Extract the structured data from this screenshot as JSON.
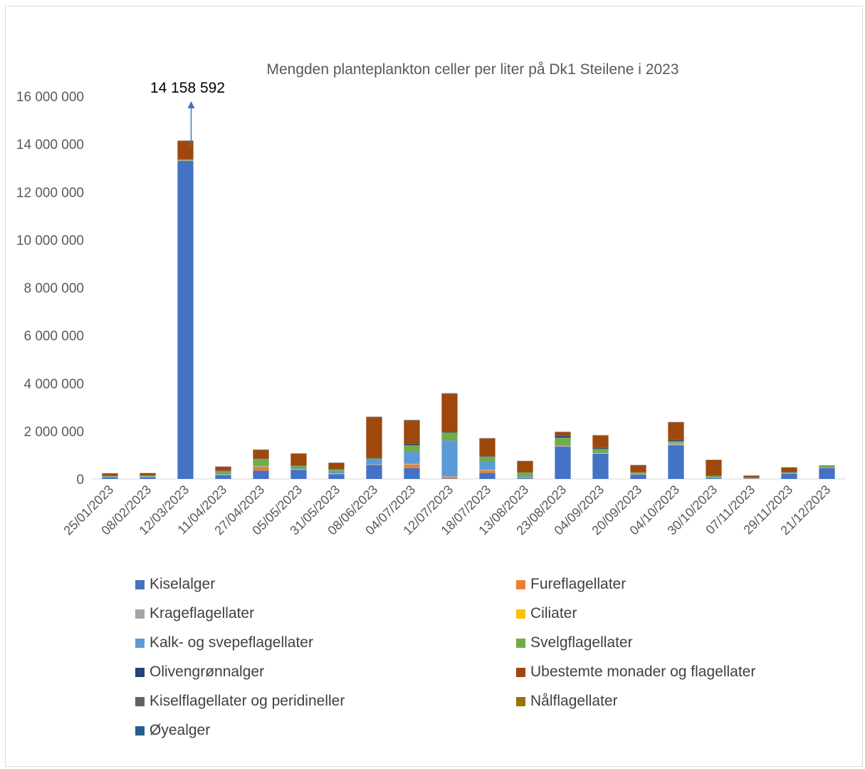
{
  "chart_data": {
    "type": "bar",
    "stacked": true,
    "title": "Mengden planteplankton celler per liter på Dk1 Steilene i 2023",
    "annotation": "14 158 592",
    "ylim": [
      0,
      16000000
    ],
    "yticks": [
      "0",
      "2 000 000",
      "4 000 000",
      "6 000 000",
      "8 000 000",
      "10 000 000",
      "12 000 000",
      "14 000 000",
      "16 000 000"
    ],
    "categories": [
      "25/01/2023",
      "08/02/2023",
      "12/03/2023",
      "11/04/2023",
      "27/04/2023",
      "05/05/2023",
      "31/05/2023",
      "08/06/2023",
      "04/07/2023",
      "12/07/2023",
      "18/07/2023",
      "13/08/2023",
      "23/08/2023",
      "04/09/2023",
      "20/09/2023",
      "04/10/2023",
      "30/10/2023",
      "07/11/2023",
      "29/11/2023",
      "21/12/2023"
    ],
    "series": [
      {
        "name": "Kiselalger",
        "color": "#4472C4",
        "values": [
          60000,
          70000,
          13300000,
          150000,
          350000,
          380000,
          200000,
          580000,
          450000,
          20000,
          250000,
          40000,
          1350000,
          1050000,
          180000,
          1400000,
          40000,
          20000,
          220000,
          450000
        ]
      },
      {
        "name": "Fureflagellater",
        "color": "#ED7D31",
        "values": [
          5000,
          5000,
          10000,
          20000,
          150000,
          20000,
          20000,
          10000,
          150000,
          60000,
          100000,
          10000,
          10000,
          10000,
          10000,
          10000,
          5000,
          5000,
          10000,
          10000
        ]
      },
      {
        "name": "Krageflagellater",
        "color": "#A5A5A5",
        "values": [
          5000,
          5000,
          5000,
          10000,
          10000,
          10000,
          10000,
          10000,
          20000,
          20000,
          20000,
          5000,
          10000,
          10000,
          10000,
          80000,
          10000,
          5000,
          5000,
          5000
        ]
      },
      {
        "name": "Ciliater",
        "color": "#FFC000",
        "values": [
          2000,
          2000,
          5000,
          5000,
          10000,
          5000,
          5000,
          5000,
          10000,
          5000,
          10000,
          5000,
          5000,
          5000,
          5000,
          5000,
          2000,
          2000,
          2000,
          2000
        ]
      },
      {
        "name": "Kalk- og svepeflagellater",
        "color": "#5B9BD5",
        "values": [
          30000,
          30000,
          10000,
          70000,
          20000,
          30000,
          100000,
          230000,
          530000,
          1500000,
          350000,
          40000,
          50000,
          20000,
          20000,
          20000,
          20000,
          5000,
          20000,
          10000
        ]
      },
      {
        "name": "Svelgflagellater",
        "color": "#70AD47",
        "values": [
          30000,
          30000,
          20000,
          80000,
          300000,
          100000,
          60000,
          20000,
          250000,
          330000,
          200000,
          170000,
          300000,
          160000,
          50000,
          60000,
          50000,
          10000,
          20000,
          60000
        ]
      },
      {
        "name": "Olivengrønnalger",
        "color": "#264478",
        "values": [
          2000,
          2000,
          5000,
          5000,
          10000,
          10000,
          5000,
          10000,
          60000,
          20000,
          20000,
          5000,
          70000,
          30000,
          10000,
          40000,
          5000,
          2000,
          5000,
          5000
        ]
      },
      {
        "name": "Ubestemte monader og flagellater",
        "color": "#9E480E",
        "values": [
          100000,
          100000,
          780000,
          170000,
          360000,
          500000,
          270000,
          1720000,
          960000,
          1590000,
          740000,
          470000,
          160000,
          530000,
          290000,
          750000,
          660000,
          90000,
          200000,
          20000
        ]
      },
      {
        "name": "Kiselflagellater og peridineller",
        "color": "#636363",
        "values": [
          2000,
          2000,
          5000,
          5000,
          10000,
          5000,
          5000,
          10000,
          20000,
          20000,
          10000,
          5000,
          10000,
          10000,
          5000,
          10000,
          5000,
          2000,
          2000,
          2000
        ]
      },
      {
        "name": "Nålflagellater",
        "color": "#997300",
        "values": [
          1000,
          1000,
          3000,
          3000,
          5000,
          5000,
          3000,
          5000,
          10000,
          10000,
          5000,
          3000,
          5000,
          5000,
          3000,
          5000,
          3000,
          1000,
          2000,
          2000
        ]
      },
      {
        "name": "Øyealger",
        "color": "#255E91",
        "values": [
          1000,
          1000,
          3000,
          3000,
          5000,
          5000,
          3000,
          5000,
          10000,
          10000,
          5000,
          3000,
          5000,
          5000,
          3000,
          5000,
          3000,
          1000,
          2000,
          2000
        ]
      }
    ]
  }
}
